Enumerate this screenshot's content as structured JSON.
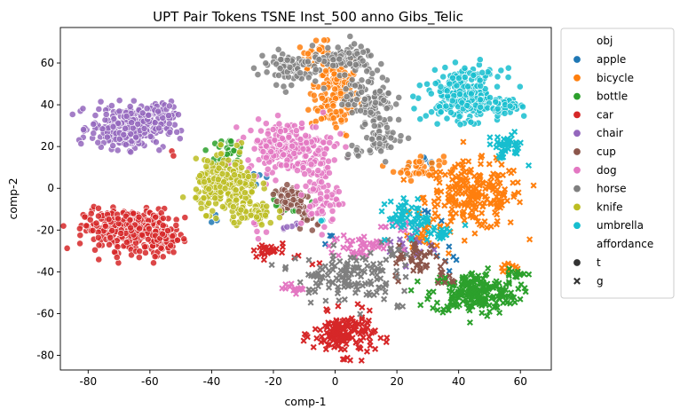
{
  "chart_data": {
    "type": "scatter",
    "title": "UPT Pair Tokens TSNE Inst_500 anno Gibs_Telic",
    "xlabel": "comp-1",
    "ylabel": "comp-2",
    "xlim": [
      -89,
      70
    ],
    "ylim": [
      -87,
      77
    ],
    "xticks": [
      -80,
      -60,
      -40,
      -20,
      0,
      20,
      40,
      60
    ],
    "yticks": [
      -80,
      -60,
      -40,
      -20,
      0,
      20,
      40,
      60
    ],
    "grid": false,
    "legend": {
      "placement": "outside-right",
      "hue_title": "obj",
      "style_title": "affordance",
      "style_entries": [
        {
          "label": "t",
          "marker": "circle"
        },
        {
          "label": "g",
          "marker": "x"
        }
      ]
    },
    "series": [
      {
        "name": "apple",
        "color": "#1f77b4",
        "clusters": [
          {
            "marker": "circle",
            "cx": 30,
            "cy": 12,
            "sx": 3,
            "sy": 2,
            "n": 6
          },
          {
            "marker": "circle",
            "cx": -24,
            "cy": 6,
            "sx": 2,
            "sy": 3,
            "n": 5
          },
          {
            "marker": "circle",
            "cx": -40,
            "cy": -14,
            "sx": 2,
            "sy": 2,
            "n": 3
          },
          {
            "marker": "circle",
            "cx": -4,
            "cy": 40,
            "sx": 1,
            "sy": 1,
            "n": 2
          },
          {
            "marker": "x",
            "cx": 31,
            "cy": -12,
            "sx": 3,
            "sy": 2,
            "n": 5
          },
          {
            "marker": "x",
            "cx": 38,
            "cy": -34,
            "sx": 3,
            "sy": 3,
            "n": 6
          },
          {
            "marker": "x",
            "cx": -2,
            "cy": -24,
            "sx": 1,
            "sy": 2,
            "n": 3
          }
        ]
      },
      {
        "name": "bicycle",
        "color": "#ff7f0e",
        "clusters": [
          {
            "marker": "circle",
            "cx": 0,
            "cy": 46,
            "sx": 4,
            "sy": 10,
            "n": 150
          },
          {
            "marker": "circle",
            "cx": -6,
            "cy": 64,
            "sx": 3,
            "sy": 3,
            "n": 30
          },
          {
            "marker": "circle",
            "cx": 27,
            "cy": 10,
            "sx": 4,
            "sy": 3,
            "n": 40
          },
          {
            "marker": "x",
            "cx": 45,
            "cy": -4,
            "sx": 8,
            "sy": 8,
            "n": 220
          },
          {
            "marker": "x",
            "cx": 56,
            "cy": -37,
            "sx": 2,
            "sy": 2,
            "n": 10
          },
          {
            "marker": "x",
            "cx": 30,
            "cy": -22,
            "sx": 3,
            "sy": 3,
            "n": 20
          }
        ]
      },
      {
        "name": "bottle",
        "color": "#2ca02c",
        "clusters": [
          {
            "marker": "circle",
            "cx": -35,
            "cy": 18,
            "sx": 3,
            "sy": 3,
            "n": 30
          },
          {
            "marker": "circle",
            "cx": -17,
            "cy": -9,
            "sx": 3,
            "sy": 3,
            "n": 15
          },
          {
            "marker": "x",
            "cx": 45,
            "cy": -50,
            "sx": 7,
            "sy": 5,
            "n": 220
          },
          {
            "marker": "x",
            "cx": 58,
            "cy": -42,
            "sx": 2,
            "sy": 2,
            "n": 10
          }
        ]
      },
      {
        "name": "car",
        "color": "#d62728",
        "clusters": [
          {
            "marker": "circle",
            "cx": -67,
            "cy": -20,
            "sx": 7,
            "sy": 5,
            "n": 320
          },
          {
            "marker": "circle",
            "cx": -55,
            "cy": -24,
            "sx": 3,
            "sy": 4,
            "n": 50
          },
          {
            "marker": "circle",
            "cx": -53,
            "cy": 17,
            "sx": 1,
            "sy": 1,
            "n": 2
          },
          {
            "marker": "x",
            "cx": 3,
            "cy": -70,
            "sx": 5,
            "sy": 5,
            "n": 150
          },
          {
            "marker": "x",
            "cx": -22,
            "cy": -30,
            "sx": 3,
            "sy": 2,
            "n": 25
          },
          {
            "marker": "x",
            "cx": -11,
            "cy": -35,
            "sx": 2,
            "sy": 2,
            "n": 4
          }
        ]
      },
      {
        "name": "chair",
        "color": "#9467bd",
        "clusters": [
          {
            "marker": "circle",
            "cx": -67,
            "cy": 29,
            "sx": 6,
            "sy": 5,
            "n": 300
          },
          {
            "marker": "circle",
            "cx": -56,
            "cy": 36,
            "sx": 3,
            "sy": 3,
            "n": 40
          },
          {
            "marker": "circle",
            "cx": -16,
            "cy": -17,
            "sx": 2,
            "sy": 2,
            "n": 6
          },
          {
            "marker": "x",
            "cx": 25,
            "cy": -28,
            "sx": 4,
            "sy": 4,
            "n": 20
          }
        ]
      },
      {
        "name": "cup",
        "color": "#8c564b",
        "clusters": [
          {
            "marker": "circle",
            "cx": -14,
            "cy": -5,
            "sx": 3,
            "sy": 4,
            "n": 60
          },
          {
            "marker": "circle",
            "cx": -8,
            "cy": -15,
            "sx": 2,
            "sy": 2,
            "n": 10
          },
          {
            "marker": "x",
            "cx": 27,
            "cy": -34,
            "sx": 4,
            "sy": 5,
            "n": 40
          },
          {
            "marker": "x",
            "cx": 36,
            "cy": -42,
            "sx": 2,
            "sy": 2,
            "n": 8
          }
        ]
      },
      {
        "name": "dog",
        "color": "#e377c2",
        "clusters": [
          {
            "marker": "circle",
            "cx": -15,
            "cy": 20,
            "sx": 7,
            "sy": 6,
            "n": 220
          },
          {
            "marker": "circle",
            "cx": -5,
            "cy": -2,
            "sx": 3,
            "sy": 9,
            "n": 80
          },
          {
            "marker": "circle",
            "cx": -26,
            "cy": -20,
            "sx": 2,
            "sy": 2,
            "n": 6
          },
          {
            "marker": "x",
            "cx": -13,
            "cy": -48,
            "sx": 2,
            "sy": 1,
            "n": 15
          },
          {
            "marker": "x",
            "cx": 8,
            "cy": -28,
            "sx": 5,
            "sy": 3,
            "n": 40
          },
          {
            "marker": "x",
            "cx": 20,
            "cy": -18,
            "sx": 3,
            "sy": 2,
            "n": 10
          }
        ]
      },
      {
        "name": "horse",
        "color": "#7f7f7f",
        "clusters": [
          {
            "marker": "circle",
            "cx": -15,
            "cy": 58,
            "sx": 5,
            "sy": 4,
            "n": 80
          },
          {
            "marker": "circle",
            "cx": 3,
            "cy": 62,
            "sx": 5,
            "sy": 3,
            "n": 80
          },
          {
            "marker": "circle",
            "cx": 11,
            "cy": 43,
            "sx": 4,
            "sy": 6,
            "n": 100
          },
          {
            "marker": "circle",
            "cx": 16,
            "cy": 25,
            "sx": 3,
            "sy": 4,
            "n": 50
          },
          {
            "marker": "circle",
            "cx": 6,
            "cy": 18,
            "sx": 2,
            "sy": 2,
            "n": 10
          },
          {
            "marker": "x",
            "cx": 3,
            "cy": -42,
            "sx": 8,
            "sy": 6,
            "n": 130
          },
          {
            "marker": "x",
            "cx": 18,
            "cy": -30,
            "sx": 2,
            "sy": 3,
            "n": 10
          },
          {
            "marker": "x",
            "cx": 22,
            "cy": -56,
            "sx": 1,
            "sy": 1,
            "n": 3
          }
        ]
      },
      {
        "name": "knife",
        "color": "#bcbd22",
        "clusters": [
          {
            "marker": "circle",
            "cx": -35,
            "cy": 1,
            "sx": 5,
            "sy": 6,
            "n": 250
          },
          {
            "marker": "circle",
            "cx": -27,
            "cy": -12,
            "sx": 4,
            "sy": 3,
            "n": 60
          },
          {
            "marker": "circle",
            "cx": -31,
            "cy": 22,
            "sx": 1,
            "sy": 1,
            "n": 2
          }
        ]
      },
      {
        "name": "umbrella",
        "color": "#17becf",
        "clusters": [
          {
            "marker": "circle",
            "cx": 42,
            "cy": 45,
            "sx": 6,
            "sy": 6,
            "n": 250
          },
          {
            "marker": "circle",
            "cx": 54,
            "cy": 38,
            "sx": 3,
            "sy": 2,
            "n": 30
          },
          {
            "marker": "circle",
            "cx": -4,
            "cy": -15,
            "sx": 1,
            "sy": 1,
            "n": 2
          },
          {
            "marker": "x",
            "cx": 55,
            "cy": 20,
            "sx": 3,
            "sy": 3,
            "n": 40
          },
          {
            "marker": "x",
            "cx": 25,
            "cy": -14,
            "sx": 4,
            "sy": 4,
            "n": 60
          },
          {
            "marker": "x",
            "cx": 33,
            "cy": -22,
            "sx": 3,
            "sy": 2,
            "n": 20
          }
        ]
      }
    ]
  }
}
